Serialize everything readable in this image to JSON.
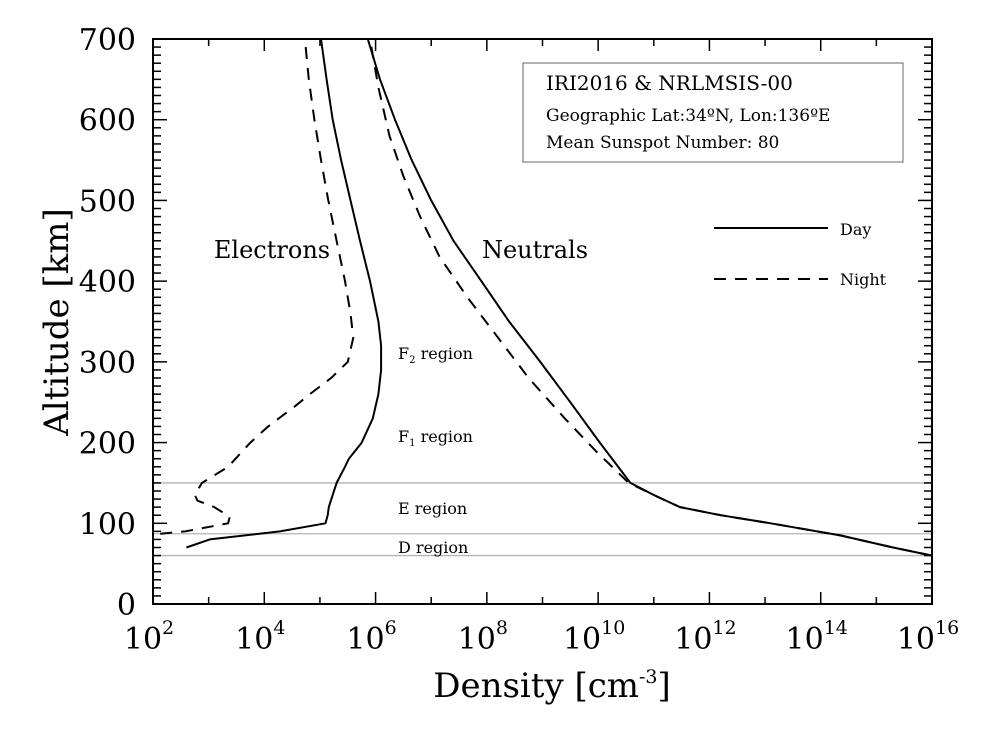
{
  "chart_data": {
    "type": "line",
    "xscale": "log",
    "xlabel": "Density [cm",
    "xlabel_superscript": "-3",
    "xlabel_suffix": "]",
    "ylabel": "Altitude [km]",
    "xlim_log10": [
      2,
      16
    ],
    "ylim": [
      0,
      700
    ],
    "x_ticks": [
      {
        "base": "10",
        "exp": "2"
      },
      {
        "base": "10",
        "exp": "4"
      },
      {
        "base": "10",
        "exp": "6"
      },
      {
        "base": "10",
        "exp": "8"
      },
      {
        "base": "10",
        "exp": "10"
      },
      {
        "base": "10",
        "exp": "12"
      },
      {
        "base": "10",
        "exp": "14"
      },
      {
        "base": "10",
        "exp": "16"
      }
    ],
    "y_ticks": [
      "0",
      "100",
      "200",
      "300",
      "400",
      "500",
      "600",
      "700"
    ],
    "grid": false,
    "region_boundaries_km": [
      60,
      87,
      150
    ],
    "region_labels": [
      {
        "main": "F",
        "sub": "2",
        "rest": " region",
        "alt": 300,
        "log10_x": 6.4
      },
      {
        "main": "F",
        "sub": "1",
        "rest": " region",
        "alt": 200,
        "log10_x": 6.4
      },
      {
        "main": "E region",
        "sub": "",
        "rest": "",
        "alt": 115,
        "log10_x": 6.4
      },
      {
        "main": "D region",
        "sub": "",
        "rest": "",
        "alt": 70,
        "log10_x": 6.4
      }
    ],
    "species_labels": [
      "Electrons",
      "Neutrals"
    ],
    "info_box": {
      "title": "IRI2016 & NRLMSIS-00",
      "line1": "Geographic Lat:34ºN, Lon:136ºE",
      "line2": "Mean Sunspot Number: 80"
    },
    "legend": {
      "placement": "right",
      "entries": [
        {
          "label": "Day",
          "style": "solid"
        },
        {
          "label": "Night",
          "style": "dashed"
        }
      ]
    },
    "series": [
      {
        "name": "Electrons Day",
        "style": "solid",
        "points_log10_alt": [
          [
            2.6,
            70
          ],
          [
            3.02,
            80
          ],
          [
            4.28,
            90
          ],
          [
            5.1,
            100
          ],
          [
            5.14,
            110
          ],
          [
            5.16,
            120
          ],
          [
            5.3,
            150
          ],
          [
            5.45,
            170
          ],
          [
            5.52,
            180
          ],
          [
            5.75,
            200
          ],
          [
            5.95,
            230
          ],
          [
            6.05,
            260
          ],
          [
            6.1,
            290
          ],
          [
            6.1,
            320
          ],
          [
            6.05,
            350
          ],
          [
            5.9,
            400
          ],
          [
            5.72,
            450
          ],
          [
            5.55,
            500
          ],
          [
            5.38,
            550
          ],
          [
            5.23,
            600
          ],
          [
            5.12,
            650
          ],
          [
            5.02,
            700
          ]
        ]
      },
      {
        "name": "Electrons Night",
        "style": "dashed",
        "points_log10_alt": [
          [
            2.13,
            87
          ],
          [
            2.58,
            90
          ],
          [
            3.35,
            100
          ],
          [
            3.38,
            108
          ],
          [
            3.1,
            120
          ],
          [
            2.8,
            128
          ],
          [
            2.75,
            135
          ],
          [
            2.88,
            150
          ],
          [
            3.35,
            170
          ],
          [
            3.75,
            200
          ],
          [
            4.07,
            220
          ],
          [
            4.55,
            245
          ],
          [
            4.82,
            260
          ],
          [
            5.2,
            280
          ],
          [
            5.5,
            300
          ],
          [
            5.6,
            330
          ],
          [
            5.55,
            360
          ],
          [
            5.45,
            400
          ],
          [
            5.3,
            450
          ],
          [
            5.15,
            500
          ],
          [
            5.02,
            550
          ],
          [
            4.9,
            600
          ],
          [
            4.8,
            650
          ],
          [
            4.73,
            700
          ]
        ]
      },
      {
        "name": "Neutrals Day",
        "style": "solid",
        "points_log10_alt": [
          [
            16,
            60
          ],
          [
            15.3,
            70
          ],
          [
            14.35,
            85
          ],
          [
            13.1,
            100
          ],
          [
            12.2,
            110
          ],
          [
            11.47,
            120
          ],
          [
            11.0,
            135
          ],
          [
            10.58,
            150
          ],
          [
            10.03,
            200
          ],
          [
            9.5,
            250
          ],
          [
            8.96,
            300
          ],
          [
            8.4,
            350
          ],
          [
            7.9,
            400
          ],
          [
            7.4,
            450
          ],
          [
            7.0,
            500
          ],
          [
            6.65,
            550
          ],
          [
            6.35,
            600
          ],
          [
            6.08,
            650
          ],
          [
            5.86,
            700
          ]
        ]
      },
      {
        "name": "Neutrals Night",
        "style": "dashed",
        "points_log10_alt": [
          [
            16,
            60
          ],
          [
            15.3,
            70
          ],
          [
            14.35,
            85
          ],
          [
            13.1,
            100
          ],
          [
            12.2,
            110
          ],
          [
            11.47,
            120
          ],
          [
            11.0,
            135
          ],
          [
            10.55,
            150
          ],
          [
            9.95,
            190
          ],
          [
            9.4,
            230
          ],
          [
            8.75,
            280
          ],
          [
            8.2,
            330
          ],
          [
            7.65,
            380
          ],
          [
            7.15,
            430
          ],
          [
            6.8,
            480
          ],
          [
            6.5,
            530
          ],
          [
            6.25,
            580
          ],
          [
            6.05,
            640
          ],
          [
            5.9,
            700
          ]
        ]
      }
    ]
  }
}
